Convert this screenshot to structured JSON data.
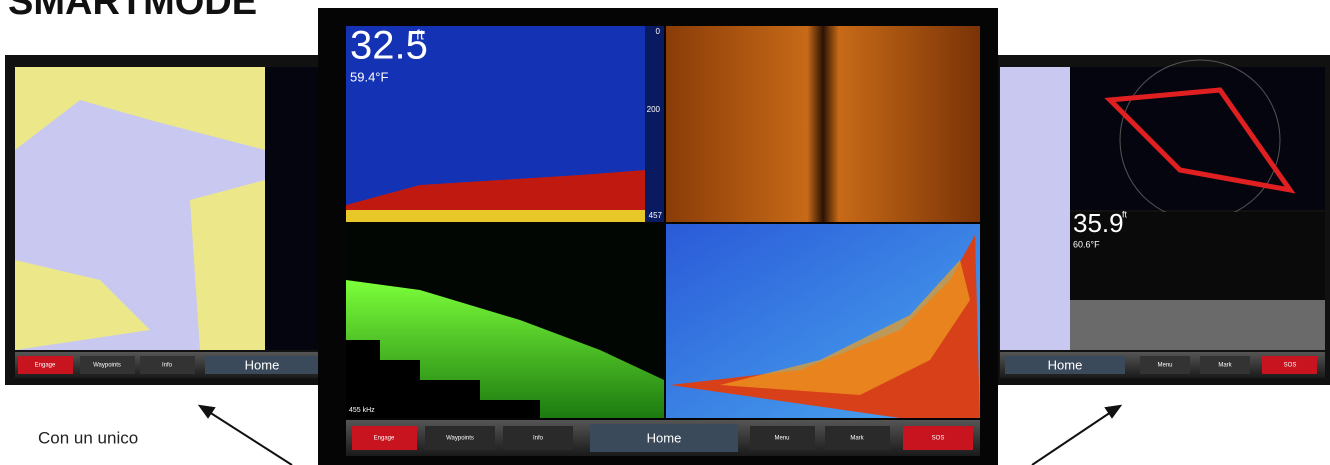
{
  "title": "SMARTMODE",
  "caption": "Con un unico",
  "left_screen": {
    "buttons": [
      "Engage",
      "Waypoints",
      "Info"
    ],
    "home": "Home"
  },
  "center_screen": {
    "depth": "32.5",
    "depth_unit": "ft",
    "temp": "59.4°F",
    "scale": [
      "0",
      "200",
      "457"
    ],
    "frequency": "455 kHz",
    "buttons_left": [
      "Engage",
      "Waypoints",
      "Info"
    ],
    "home": "Home",
    "buttons_right": [
      "Menu",
      "Mark",
      "SOS"
    ]
  },
  "right_screen": {
    "depth": "35.9",
    "depth_unit": "ft",
    "temp": "60.6°F",
    "home": "Home",
    "buttons": [
      "Menu",
      "Mark",
      "SOS"
    ]
  }
}
